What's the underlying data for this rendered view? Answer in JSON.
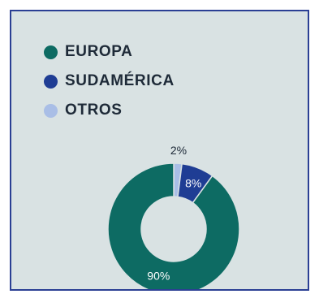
{
  "legend": {
    "items": [
      {
        "label": "EUROPA",
        "color": "#0d6b63"
      },
      {
        "label": "SUDAMÉRICA",
        "color": "#1f3d94"
      },
      {
        "label": "OTROS",
        "color": "#a9bee6"
      }
    ]
  },
  "chart_data": {
    "type": "pie",
    "variant": "donut",
    "title": "",
    "categories": [
      "EUROPA",
      "SUDAMÉRICA",
      "OTROS"
    ],
    "values": [
      90,
      8,
      2
    ],
    "labels": [
      "90%",
      "8%",
      "2%"
    ],
    "colors": [
      "#0d6b63",
      "#1f3d94",
      "#a9bee6"
    ],
    "legend_position": "top-left"
  }
}
